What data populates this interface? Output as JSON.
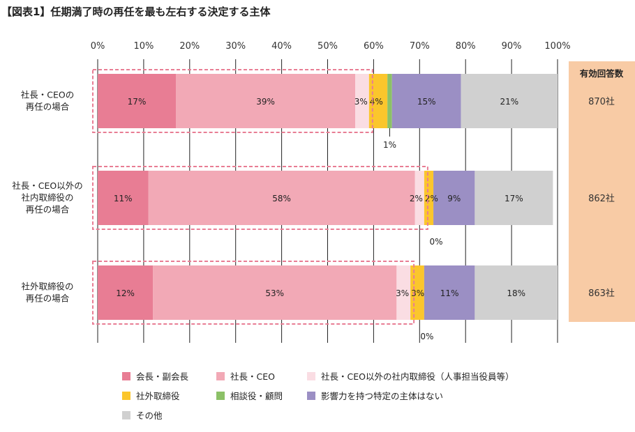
{
  "title": "【図表1】任期満了時の再任を最も左右する決定する主体",
  "chart_data": {
    "type": "bar",
    "stacked": true,
    "orientation": "horizontal",
    "x_ticks": [
      "0%",
      "10%",
      "20%",
      "30%",
      "40%",
      "50%",
      "60%",
      "70%",
      "80%",
      "90%",
      "100%"
    ],
    "xlim": [
      0,
      100
    ],
    "categories": [
      [
        "社長・CEOの",
        "再任の場合"
      ],
      [
        "社長・CEO以外の",
        "社内取締役の",
        "再任の場合"
      ],
      [
        "社外取締役の",
        "再任の場合"
      ]
    ],
    "series": [
      {
        "name": "会長・副会長",
        "color": "#e87d94",
        "values": [
          17,
          11,
          12
        ],
        "labels": [
          "17%",
          "11%",
          "12%"
        ]
      },
      {
        "name": "社長・CEO",
        "color": "#f2a9b6",
        "values": [
          39,
          58,
          53
        ],
        "labels": [
          "39%",
          "58%",
          "53%"
        ]
      },
      {
        "name": "社長・CEO以外の社内取締役（人事担当役員等）",
        "color": "#fadde3",
        "values": [
          3,
          2,
          3
        ],
        "labels": [
          "3%",
          "2%",
          "3%"
        ]
      },
      {
        "name": "社外取締役",
        "color": "#fbc62c",
        "values": [
          4,
          2,
          3
        ],
        "labels": [
          "4%",
          "2%",
          "3%"
        ]
      },
      {
        "name": "相談役・顧問",
        "color": "#8cc167",
        "values": [
          1,
          0,
          0
        ],
        "labels": [
          "1%",
          "0%",
          "0%"
        ]
      },
      {
        "name": "影響力を持つ特定の主体はない",
        "color": "#9b8fc4",
        "values": [
          15,
          9,
          11
        ],
        "labels": [
          "15%",
          "9%",
          "11%"
        ]
      },
      {
        "name": "その他",
        "color": "#d0d0d0",
        "values": [
          21,
          17,
          18
        ],
        "labels": [
          "21%",
          "17%",
          "18%"
        ]
      }
    ],
    "responses": {
      "header": "有効回答数",
      "values": [
        "870社",
        "862社",
        "863社"
      ],
      "color": "#f8cba5"
    },
    "highlight_color": "#e87d94"
  }
}
